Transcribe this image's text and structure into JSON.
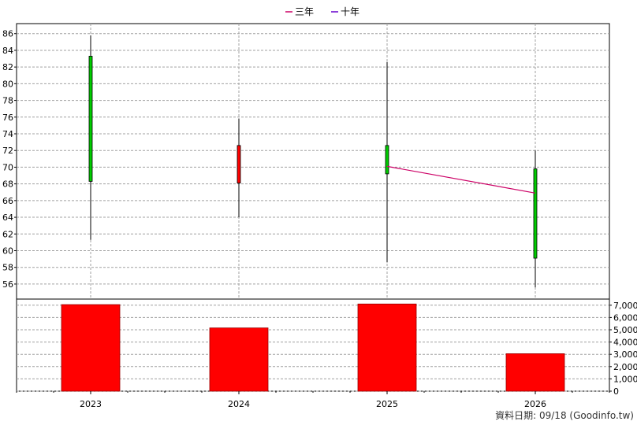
{
  "legend": [
    {
      "label": "三年",
      "color": "#cc0066"
    },
    {
      "label": "十年",
      "color": "#6600cc"
    }
  ],
  "footer": "資料日期: 09/18  (Goodinfo.tw)",
  "colors": {
    "up": "#00cc00",
    "down": "#ff0000",
    "volume": "#ff0000",
    "wick": "#000000",
    "grid": "#a0a0a0"
  },
  "chart_data": [
    {
      "type": "candlestick",
      "categories": [
        "2023",
        "2024",
        "2025",
        "2026"
      ],
      "candles": [
        {
          "x": "2023",
          "open": 68.3,
          "close": 83.3,
          "high": 85.8,
          "low": 61.3
        },
        {
          "x": "2024",
          "open": 72.6,
          "close": 68.1,
          "high": 75.8,
          "low": 64.0
        },
        {
          "x": "2025",
          "open": 69.2,
          "close": 72.6,
          "high": 82.6,
          "low": 58.6
        },
        {
          "x": "2026",
          "open": 59.1,
          "close": 69.8,
          "high": 72.0,
          "low": 55.6
        }
      ],
      "series": [
        {
          "name": "三年",
          "points": [
            [
              "2025",
              70.1
            ],
            [
              "2026",
              66.9
            ]
          ]
        }
      ],
      "ylim": [
        54.2,
        87.2
      ],
      "yticks": [
        56,
        58,
        60,
        62,
        64,
        66,
        68,
        70,
        72,
        74,
        76,
        78,
        80,
        82,
        84,
        86
      ],
      "grid": true,
      "legend_position": "top-center"
    },
    {
      "type": "bar",
      "categories": [
        "2023",
        "2024",
        "2025",
        "2026"
      ],
      "values": [
        7050,
        5150,
        7100,
        3050
      ],
      "ylim": [
        0,
        7500
      ],
      "yticks": [
        "0",
        "1,000",
        "2,000",
        "3,000",
        "4,000",
        "5,000",
        "6,000",
        "7,000"
      ],
      "grid": true
    }
  ]
}
